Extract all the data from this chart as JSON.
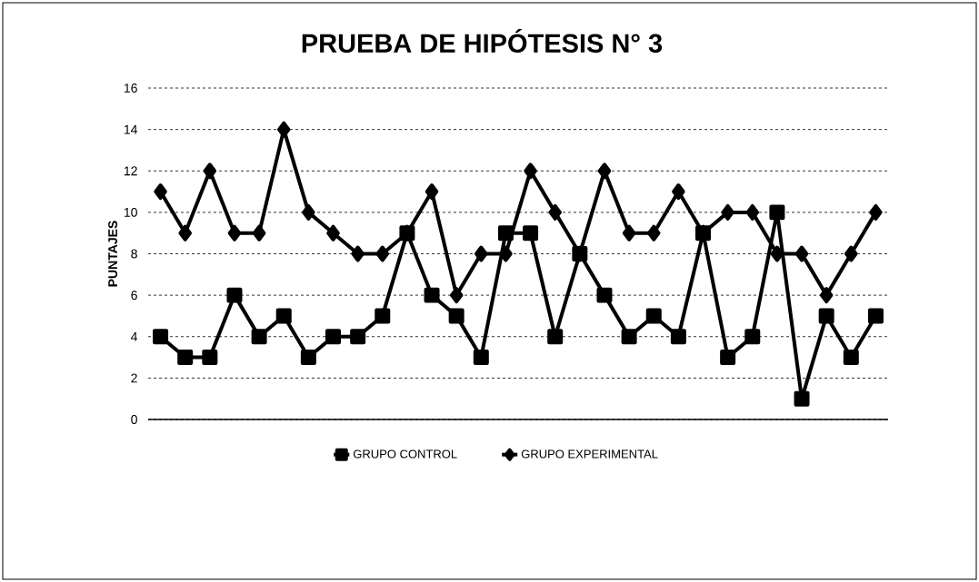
{
  "chart_data": {
    "type": "line",
    "title": "PRUEBA DE HIPÓTESIS N° 3",
    "ylabel": "PUNTAJES",
    "categories": [
      null,
      null,
      null,
      null,
      null,
      null,
      null,
      null,
      null,
      null,
      null,
      null,
      null,
      null,
      null,
      null,
      null,
      null,
      null,
      null,
      null,
      null,
      null,
      null,
      null,
      null,
      null,
      null,
      null,
      null
    ],
    "series": [
      {
        "name": "GRUPO EXPERIMENTAL",
        "color": "#000000",
        "marker": "diamond",
        "values": [
          11,
          9,
          12,
          9,
          9,
          14,
          10,
          9,
          8,
          8,
          9,
          11,
          6,
          8,
          8,
          12,
          10,
          8,
          12,
          9,
          9,
          11,
          9,
          10,
          10,
          8,
          8,
          6,
          8,
          10
        ]
      },
      {
        "name": "GRUPO CONTROL",
        "color": "#000000",
        "marker": "square",
        "values": [
          4,
          3,
          3,
          6,
          4,
          5,
          3,
          4,
          4,
          5,
          9,
          6,
          5,
          3,
          9,
          9,
          4,
          8,
          6,
          4,
          5,
          4,
          9,
          3,
          4,
          10,
          1,
          5,
          3,
          5
        ]
      }
    ],
    "ylim": [
      0,
      16
    ],
    "yticks": [
      0,
      2,
      4,
      6,
      8,
      10,
      12,
      14,
      16
    ],
    "grid": "y",
    "legend": "bottom",
    "tick_labels": "y",
    "line_style": "solid"
  }
}
